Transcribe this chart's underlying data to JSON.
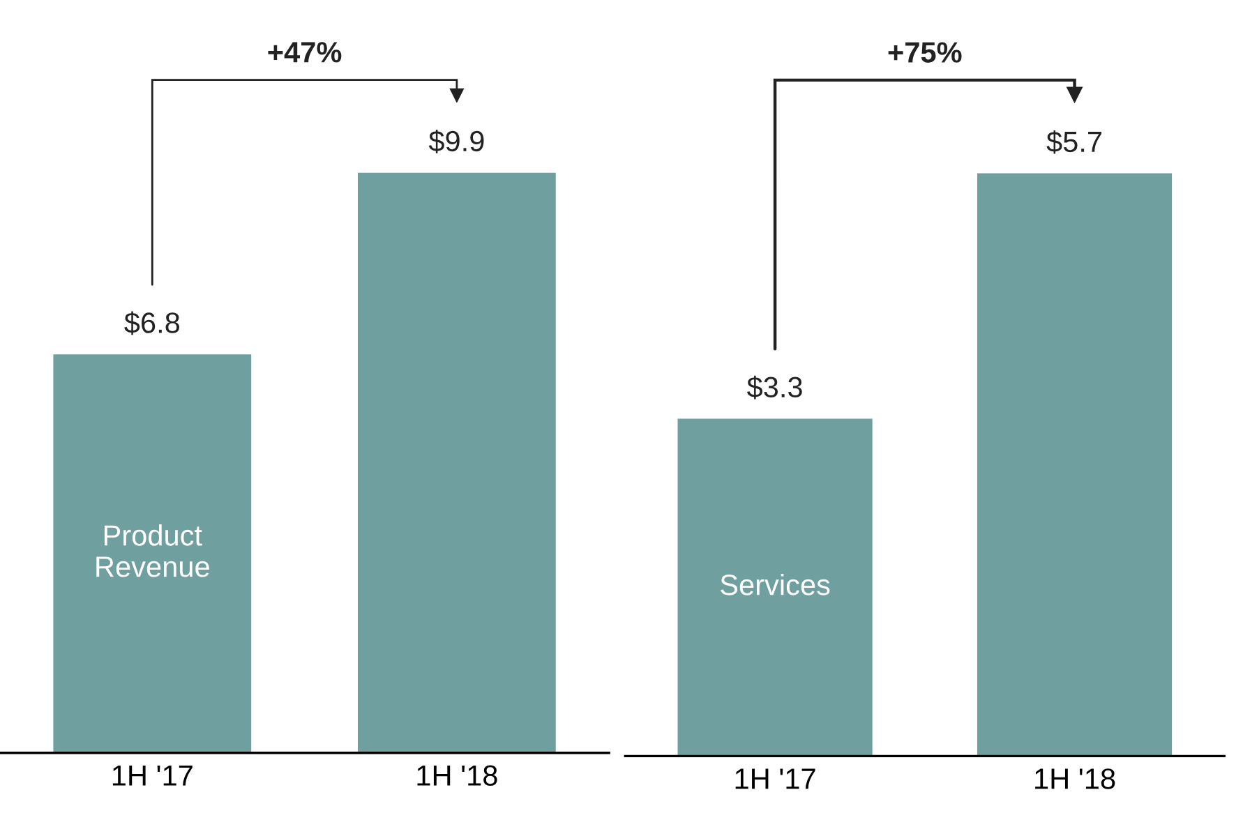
{
  "chart_data": [
    {
      "type": "bar",
      "categories": [
        "1H '17",
        "1H '18"
      ],
      "values": [
        6.8,
        9.9
      ],
      "value_labels": [
        "$6.8",
        "$9.9"
      ],
      "color": "#6fa09f",
      "annotations": [
        "+47%",
        "Product\nRevenue"
      ]
    },
    {
      "type": "bar",
      "categories": [
        "1H '17",
        "1H '18"
      ],
      "values": [
        3.3,
        5.7
      ],
      "value_labels": [
        "$3.3",
        "$5.7"
      ],
      "color": "#6fa09f",
      "annotations": [
        "+75%",
        "Services"
      ]
    }
  ]
}
